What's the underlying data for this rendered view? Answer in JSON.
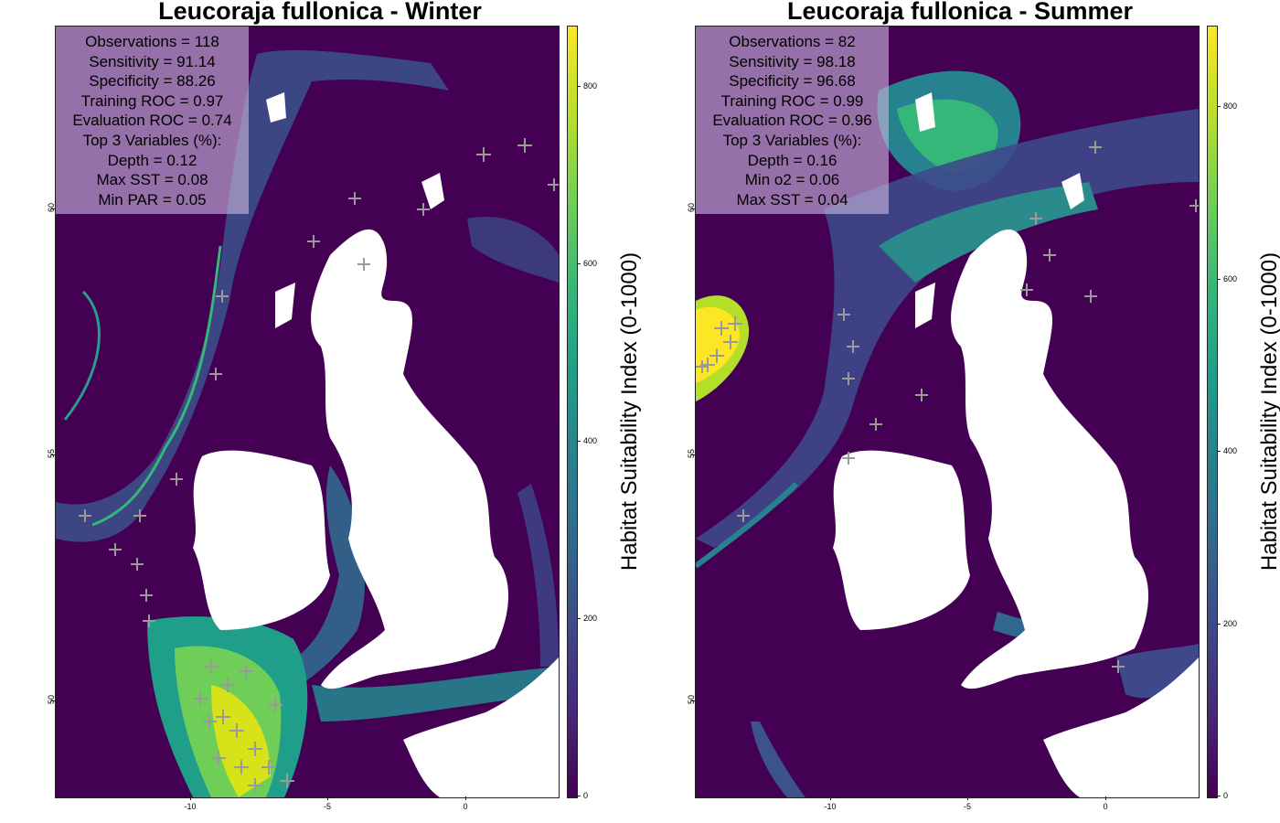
{
  "panels": [
    {
      "title": "Leucoraja fullonica - Winter",
      "stats": [
        "Observations = 118",
        "Sensitivity = 91.14",
        "Specificity = 88.26",
        "Training ROC = 0.97",
        "Evaluation ROC = 0.74",
        "Top 3 Variables (%):",
        "Depth = 0.12",
        "Max SST = 0.08",
        "Min PAR = 0.05"
      ],
      "colorbar_ticks": [
        "0",
        "200",
        "400",
        "600",
        "800"
      ],
      "colorbar_max": 870,
      "colorbar_title": "Habitat Suitability Index (0-1000)"
    },
    {
      "title": "Leucoraja fullonica - Summer",
      "stats": [
        "Observations = 82",
        "Sensitivity = 98.18",
        "Specificity = 96.68",
        "Training ROC = 0.99",
        "Evaluation ROC = 0.96",
        "Top 3 Variables (%):",
        "Depth = 0.16",
        "Min o2 = 0.06",
        "Max SST = 0.04"
      ],
      "colorbar_ticks": [
        "0",
        "200",
        "400",
        "600",
        "800"
      ],
      "colorbar_max": 900,
      "colorbar_title": "Habitat Suitability Index (0-1000)"
    }
  ],
  "x_ticks": [
    "-10",
    "-5",
    "0"
  ],
  "y_ticks": [
    "60",
    "55",
    "50"
  ],
  "colormap": [
    "#440154",
    "#3e4989",
    "#26828e",
    "#35b779",
    "#fde725"
  ],
  "land_color": "#ffffff",
  "marker_color": "#9a9a9a"
}
